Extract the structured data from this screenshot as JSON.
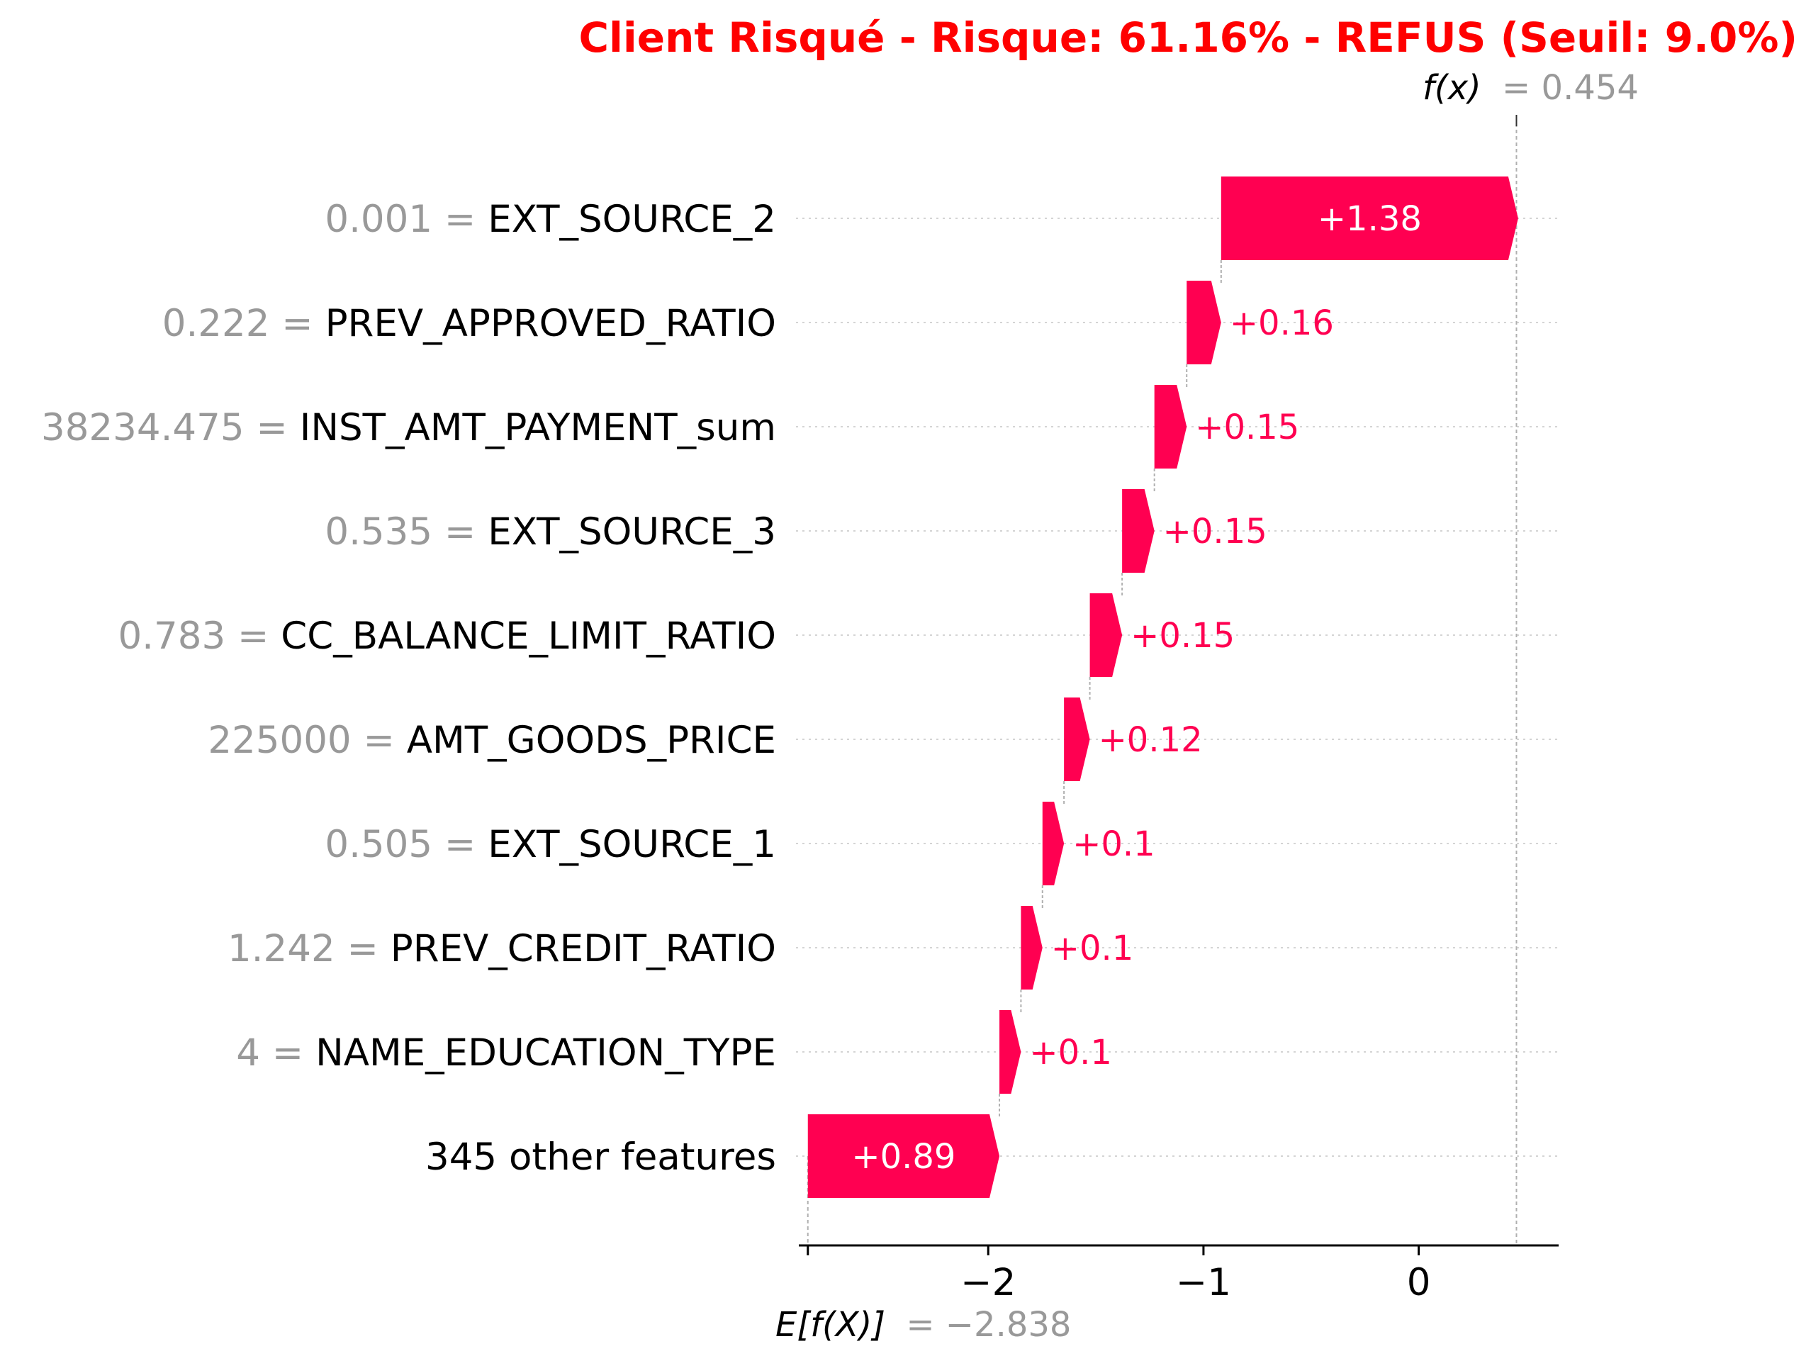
{
  "chart_data": {
    "type": "waterfall",
    "title": "Client Risqué - Risque: 61.16% - REFUS (Seuil: 9.0%)",
    "base_value": -2.838,
    "base_label": "E[f(X)]",
    "base_value_text": "= −2.838",
    "output_value": 0.454,
    "output_label": "f(x)",
    "output_value_text": "= 0.454",
    "xlim": [
      -2.88,
      0.65
    ],
    "xticks": [
      {
        "value": -2,
        "label": "−2"
      },
      {
        "value": -1,
        "label": "−1"
      },
      {
        "value": 0,
        "label": "0"
      }
    ],
    "grid": false,
    "positive_color": "#ff0051",
    "feature_value_color": "#999999",
    "features": [
      {
        "value_text": "0.001",
        "name": "EXT_SOURCE_2",
        "contribution": 1.38,
        "label": "+1.38"
      },
      {
        "value_text": "0.222",
        "name": "PREV_APPROVED_RATIO",
        "contribution": 0.16,
        "label": "+0.16"
      },
      {
        "value_text": "38234.475",
        "name": "INST_AMT_PAYMENT_sum",
        "contribution": 0.15,
        "label": "+0.15"
      },
      {
        "value_text": "0.535",
        "name": "EXT_SOURCE_3",
        "contribution": 0.15,
        "label": "+0.15"
      },
      {
        "value_text": "0.783",
        "name": "CC_BALANCE_LIMIT_RATIO",
        "contribution": 0.15,
        "label": "+0.15"
      },
      {
        "value_text": "225000",
        "name": "AMT_GOODS_PRICE",
        "contribution": 0.12,
        "label": "+0.12"
      },
      {
        "value_text": "0.505",
        "name": "EXT_SOURCE_1",
        "contribution": 0.1,
        "label": "+0.1"
      },
      {
        "value_text": "1.242",
        "name": "PREV_CREDIT_RATIO",
        "contribution": 0.1,
        "label": "+0.1"
      },
      {
        "value_text": "4",
        "name": "NAME_EDUCATION_TYPE",
        "contribution": 0.1,
        "label": "+0.1"
      },
      {
        "value_text": "",
        "name": "345 other features",
        "contribution": 0.89,
        "label": "+0.89"
      }
    ]
  }
}
